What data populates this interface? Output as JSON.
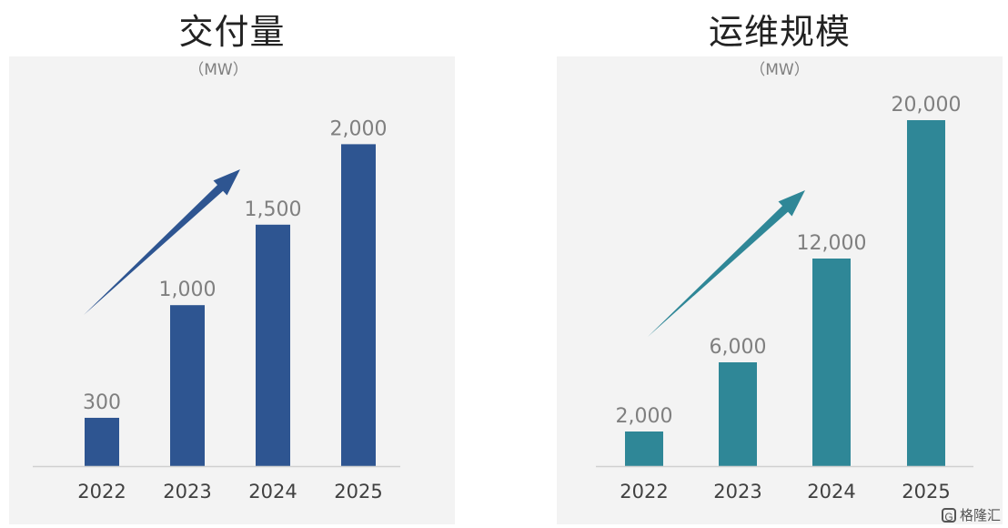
{
  "colors": {
    "left_bar": "#2e5591",
    "right_bar": "#2f8797",
    "label_text": "#7f7f7f",
    "axis_text": "#404040"
  },
  "watermark": {
    "icon": "gelonghui-logo-icon",
    "text": "格隆汇"
  },
  "chart_data": [
    {
      "type": "bar",
      "title": "交付量",
      "unit": "（MW）",
      "categories": [
        "2022",
        "2023",
        "2024",
        "2025"
      ],
      "values": [
        300,
        1000,
        1500,
        2000
      ],
      "value_labels": [
        "300",
        "1,000",
        "1,500",
        "2,000"
      ],
      "ylim": [
        0,
        2500
      ],
      "grid": false,
      "legend": "none",
      "annotation": "upward-trend-arrow-icon"
    },
    {
      "type": "bar",
      "title": "运维规模",
      "unit": "（MW）",
      "categories": [
        "2022",
        "2023",
        "2024",
        "2025"
      ],
      "values": [
        2000,
        6000,
        12000,
        20000
      ],
      "value_labels": [
        "2,000",
        "6,000",
        "12,000",
        "20,000"
      ],
      "ylim": [
        0,
        24000
      ],
      "grid": false,
      "legend": "none",
      "annotation": "upward-trend-arrow-icon"
    }
  ]
}
